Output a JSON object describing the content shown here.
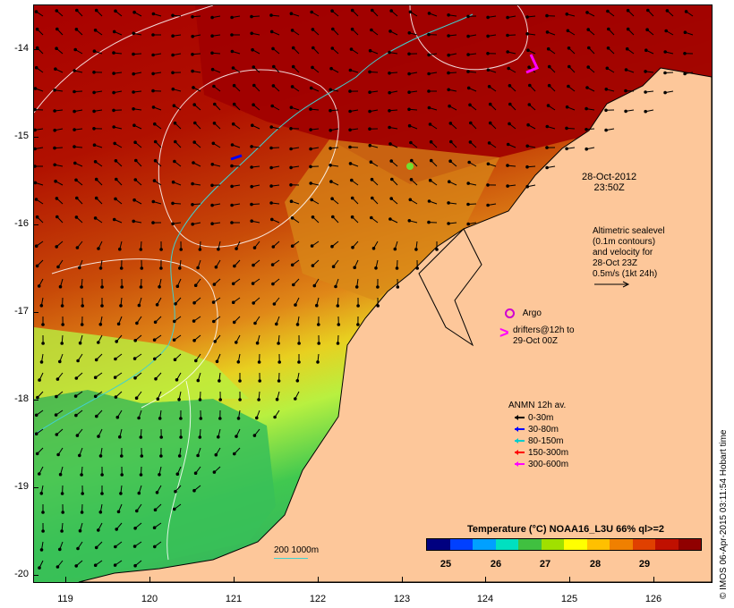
{
  "y_axis": {
    "ticks": [
      "-14",
      "-15",
      "-16",
      "-17",
      "-18",
      "-19",
      "-20"
    ]
  },
  "x_axis": {
    "ticks": [
      "119",
      "120",
      "121",
      "122",
      "123",
      "124",
      "125",
      "126"
    ]
  },
  "annotations": {
    "timestamp_line1": "28-Oct-2012",
    "timestamp_line2": "23:50Z",
    "altimetry": [
      "Altimetric sealevel",
      "(0.1m contours)",
      "and velocity for",
      "28-Oct 23Z",
      "0.5m/s (1kt 24h)"
    ],
    "argo_label": "Argo",
    "drifters_line1": "drifters@12h to",
    "drifters_line2": "29-Oct 00Z",
    "scale_label": "200  1000m"
  },
  "legend": {
    "title": "ANMN 12h av.",
    "items": [
      {
        "label": "0-30m",
        "color": "#000000"
      },
      {
        "label": "30-80m",
        "color": "#0000ff"
      },
      {
        "label": "80-150m",
        "color": "#00cccc"
      },
      {
        "label": "150-300m",
        "color": "#ff0000"
      },
      {
        "label": "300-600m",
        "color": "#ff00ff"
      }
    ]
  },
  "colorbar": {
    "title": "Temperature (°C) NOAA16_L3U 66% ql>=2",
    "ticks": [
      "25",
      "26",
      "27",
      "28",
      "29"
    ],
    "colors": [
      "#000080",
      "#0040ff",
      "#00a0ff",
      "#00e0c0",
      "#40c040",
      "#a0e000",
      "#ffff00",
      "#ffc000",
      "#f08000",
      "#e04000",
      "#c01000",
      "#900000"
    ]
  },
  "credit": "© IMOS 06-Apr-2015 03:11:54 Hobart time",
  "colors": {
    "land": "#fdc79a",
    "warm_sea": "#a50000",
    "mid_sea": "#d86010",
    "cool_sea": "#c0f040",
    "coldest_sea": "#30c060"
  }
}
